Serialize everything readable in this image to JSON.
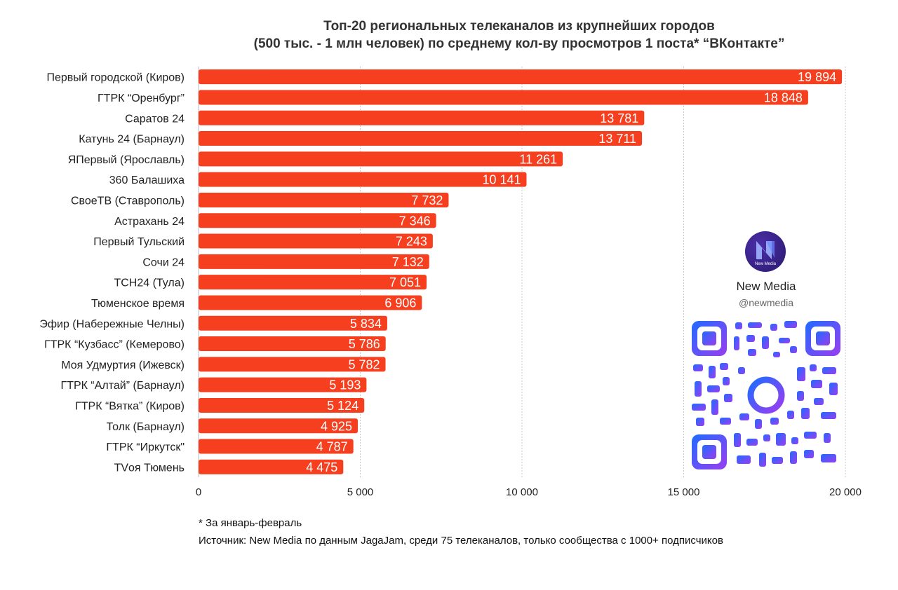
{
  "chart_data": {
    "type": "bar",
    "orientation": "horizontal",
    "title": "Топ-20 региональных телеканалов из крупнейших городов",
    "subtitle": "(500 тыс. - 1 млн человек) по среднему кол-ву просмотров 1 поста* “ВКонтакте”",
    "categories": [
      "Первый городской (Киров)",
      "ГТРК “Оренбург”",
      "Саратов 24",
      "Катунь 24 (Барнаул)",
      "ЯПервый (Ярославль)",
      "360 Балашиха",
      "СвоеТВ (Ставрополь)",
      "Астрахань 24",
      "Первый Тульский",
      "Сочи 24",
      "ТСН24 (Тула)",
      "Тюменское время",
      "Эфир (Набережные Челны)",
      "ГТРК “Кузбасс” (Кемерово)",
      "Моя Удмуртия (Ижевск)",
      "ГТРК “Алтай” (Барнаул)",
      "ГТРК “Вятка” (Киров)",
      "Толк (Барнаул)",
      "ГТРК “Иркутск\"",
      "TVоя Тюмень"
    ],
    "values": [
      19894,
      18848,
      13781,
      13711,
      11261,
      10141,
      7732,
      7346,
      7243,
      7132,
      7051,
      6906,
      5834,
      5786,
      5782,
      5193,
      5124,
      4925,
      4787,
      4475
    ],
    "value_labels": [
      "19 894",
      "18 848",
      "13 781",
      "13 711",
      "11 261",
      "10 141",
      "7 732",
      "7 346",
      "7 243",
      "7 132",
      "7 051",
      "6 906",
      "5 834",
      "5 786",
      "5 782",
      "5 193",
      "5 124",
      "4 925",
      "4 787",
      "4 475"
    ],
    "xlim": [
      0,
      20000
    ],
    "xticks": [
      0,
      5000,
      10000,
      15000,
      20000
    ],
    "xtick_labels": [
      "0",
      "5 000",
      "10 000",
      "15 000",
      "20 000"
    ],
    "xlabel": "",
    "ylabel": "",
    "grid": true,
    "bar_color": "#f63f1f"
  },
  "brand": {
    "name": "New Media",
    "handle": "@newmedia",
    "logo_text": "New Media"
  },
  "footnote": "* За январь-февраль",
  "source": "Источник: New Media по данным JagaJam, среди 75 телеканалов, только сообщества с 1000+ подписчиков"
}
